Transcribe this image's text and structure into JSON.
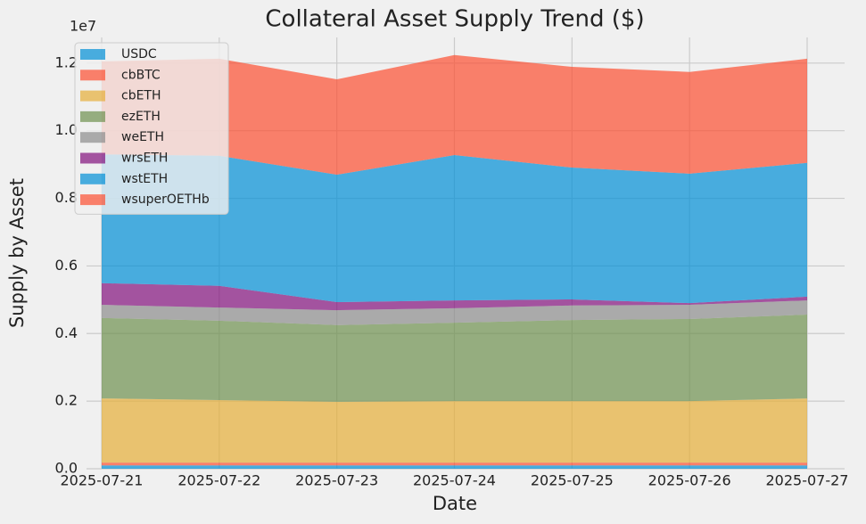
{
  "chart_data": {
    "type": "area",
    "stacked": true,
    "title": "Collateral Asset Supply Trend ($)",
    "x_label": "Date",
    "y_label": "Supply by Asset",
    "y_offset_label": "1e7",
    "x": [
      "2025-07-21",
      "2025-07-22",
      "2025-07-23",
      "2025-07-24",
      "2025-07-25",
      "2025-07-26",
      "2025-07-27"
    ],
    "ylim": [
      0,
      12760000
    ],
    "yticks": [
      {
        "value": 0,
        "label": "0.0"
      },
      {
        "value": 2000000,
        "label": "0.2"
      },
      {
        "value": 4000000,
        "label": "0.4"
      },
      {
        "value": 6000000,
        "label": "0.6"
      },
      {
        "value": 8000000,
        "label": "0.8"
      },
      {
        "value": 10000000,
        "label": "1.0"
      },
      {
        "value": 12000000,
        "label": "1.2"
      }
    ],
    "grid": true,
    "legend": "upper left",
    "series": [
      {
        "name": "USDC",
        "color": "#008fd5",
        "values": [
          100000,
          100000,
          100000,
          100000,
          100000,
          100000,
          100000
        ]
      },
      {
        "name": "cbBTC",
        "color": "#fc4f30",
        "values": [
          80000,
          80000,
          80000,
          80000,
          80000,
          80000,
          80000
        ]
      },
      {
        "name": "cbETH",
        "color": "#e5ae38",
        "values": [
          1900000,
          1850000,
          1800000,
          1820000,
          1820000,
          1820000,
          1900000
        ]
      },
      {
        "name": "ezETH",
        "color": "#6d904f",
        "values": [
          2380000,
          2350000,
          2270000,
          2320000,
          2400000,
          2430000,
          2480000
        ]
      },
      {
        "name": "weETH",
        "color": "#8b8b8b",
        "values": [
          390000,
          390000,
          440000,
          430000,
          430000,
          420000,
          420000
        ]
      },
      {
        "name": "wrsETH",
        "color": "#810f7c",
        "values": [
          640000,
          640000,
          240000,
          230000,
          180000,
          50000,
          110000
        ]
      },
      {
        "name": "wstETH",
        "color": "#008fd5",
        "values": [
          3810000,
          3850000,
          3770000,
          4300000,
          3900000,
          3830000,
          3960000
        ]
      },
      {
        "name": "wsuperOETHb",
        "color": "#fc4f30",
        "values": [
          2750000,
          2870000,
          2820000,
          2960000,
          2980000,
          3010000,
          3080000
        ]
      }
    ]
  }
}
